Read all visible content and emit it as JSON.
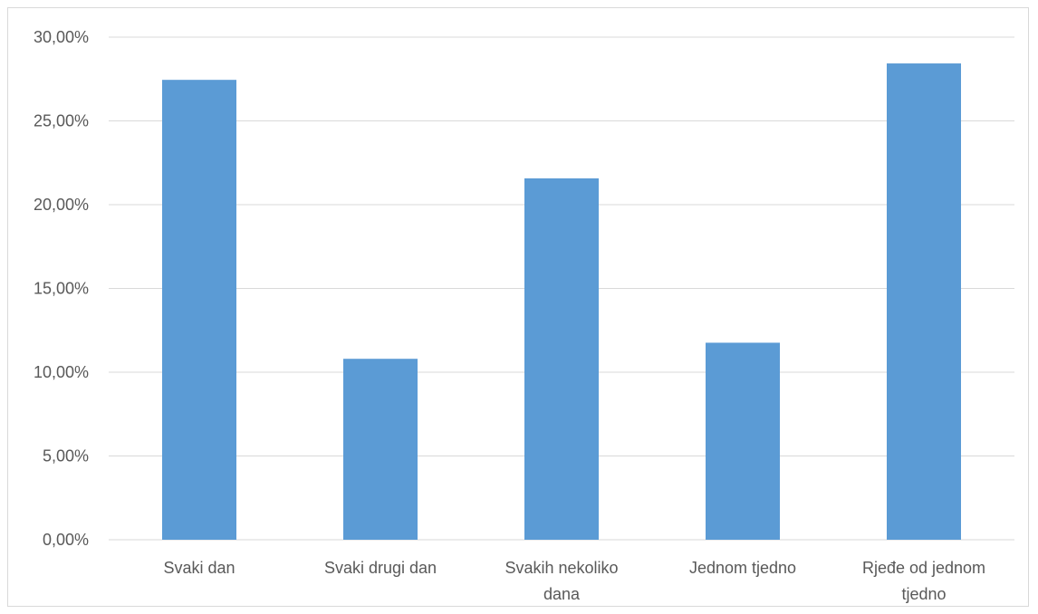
{
  "chart_data": {
    "type": "bar",
    "title": "",
    "xlabel": "",
    "ylabel": "",
    "categories": [
      [
        "Svaki dan"
      ],
      [
        "Svaki drugi dan"
      ],
      [
        "Svakih nekoliko",
        "dana"
      ],
      [
        "Jednom tjedno"
      ],
      [
        "Rjeđe od jednom",
        "tjedno"
      ]
    ],
    "values": [
      27.45,
      10.8,
      21.57,
      11.76,
      28.43
    ],
    "ylim": [
      0,
      30
    ],
    "yticks": [
      {
        "value": 0,
        "label": "0,00%"
      },
      {
        "value": 5,
        "label": "5,00%"
      },
      {
        "value": 10,
        "label": "10,00%"
      },
      {
        "value": 15,
        "label": "15,00%"
      },
      {
        "value": 20,
        "label": "20,00%"
      },
      {
        "value": 25,
        "label": "25,00%"
      },
      {
        "value": 30,
        "label": "30,00%"
      }
    ],
    "grid": true,
    "legend": "none",
    "colors": {
      "bar": "#5b9bd5",
      "grid": "#d9d9d9",
      "text": "#595959"
    }
  }
}
